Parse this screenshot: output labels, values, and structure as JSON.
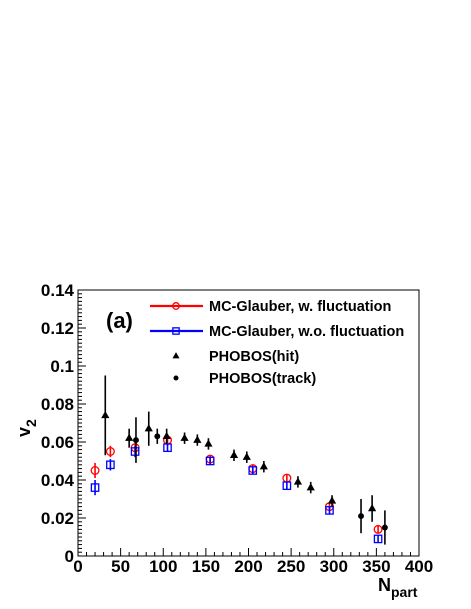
{
  "chart_data": {
    "type": "scatter",
    "panel_label": "(a)",
    "xlabel": {
      "main": "N",
      "sub": "part"
    },
    "ylabel": {
      "main": "v",
      "sub": "2"
    },
    "xlim": [
      0,
      400
    ],
    "ylim": [
      0,
      0.14
    ],
    "x_ticks": [
      0,
      50,
      100,
      150,
      200,
      250,
      300,
      350,
      400
    ],
    "x_tick_labels": [
      "0",
      "50",
      "100",
      "150",
      "200",
      "250",
      "300",
      "350",
      "400"
    ],
    "y_ticks": [
      0,
      0.02,
      0.04,
      0.06,
      0.08,
      0.1,
      0.12,
      0.14
    ],
    "y_tick_labels": [
      "0",
      "0.02",
      "0.04",
      "0.06",
      "0.08",
      "0.1",
      "0.12",
      "0.14"
    ],
    "grid": false,
    "legend_position": "top-right",
    "series": [
      {
        "name": "MC-Glauber, w. fluctuation",
        "marker": "open-circle",
        "color": "#ff0000",
        "points": [
          {
            "x": 20,
            "y": 0.045,
            "err": 0.004
          },
          {
            "x": 38,
            "y": 0.055,
            "err": 0.003
          },
          {
            "x": 67,
            "y": 0.057,
            "err": 0.003
          },
          {
            "x": 105,
            "y": 0.061,
            "err": 0.003
          },
          {
            "x": 155,
            "y": 0.051,
            "err": 0.002
          },
          {
            "x": 205,
            "y": 0.046,
            "err": 0.002
          },
          {
            "x": 245,
            "y": 0.041,
            "err": 0.002
          },
          {
            "x": 295,
            "y": 0.026,
            "err": 0.002
          },
          {
            "x": 352,
            "y": 0.014,
            "err": 0.002
          }
        ]
      },
      {
        "name": "MC-Glauber, w.o. fluctuation",
        "marker": "open-square",
        "color": "#0000ff",
        "points": [
          {
            "x": 20,
            "y": 0.036,
            "err": 0.004
          },
          {
            "x": 38,
            "y": 0.048,
            "err": 0.003
          },
          {
            "x": 67,
            "y": 0.055,
            "err": 0.003
          },
          {
            "x": 105,
            "y": 0.057,
            "err": 0.002
          },
          {
            "x": 155,
            "y": 0.05,
            "err": 0.002
          },
          {
            "x": 205,
            "y": 0.045,
            "err": 0.002
          },
          {
            "x": 245,
            "y": 0.037,
            "err": 0.002
          },
          {
            "x": 295,
            "y": 0.024,
            "err": 0.002
          },
          {
            "x": 352,
            "y": 0.009,
            "err": 0.002
          }
        ]
      },
      {
        "name": "PHOBOS(hit)",
        "marker": "filled-triangle",
        "color": "#000000",
        "points": [
          {
            "x": 32,
            "y": 0.074,
            "err": 0.021
          },
          {
            "x": 60,
            "y": 0.062,
            "err": 0.005
          },
          {
            "x": 83,
            "y": 0.067,
            "err": 0.009
          },
          {
            "x": 104,
            "y": 0.063,
            "err": 0.004
          },
          {
            "x": 125,
            "y": 0.062,
            "err": 0.003
          },
          {
            "x": 140,
            "y": 0.061,
            "err": 0.003
          },
          {
            "x": 153,
            "y": 0.059,
            "err": 0.003
          },
          {
            "x": 183,
            "y": 0.053,
            "err": 0.003
          },
          {
            "x": 198,
            "y": 0.052,
            "err": 0.003
          },
          {
            "x": 218,
            "y": 0.047,
            "err": 0.003
          },
          {
            "x": 258,
            "y": 0.039,
            "err": 0.003
          },
          {
            "x": 273,
            "y": 0.036,
            "err": 0.003
          },
          {
            "x": 298,
            "y": 0.029,
            "err": 0.003
          },
          {
            "x": 345,
            "y": 0.025,
            "err": 0.007
          }
        ]
      },
      {
        "name": "PHOBOS(track)",
        "marker": "filled-circle",
        "color": "#000000",
        "points": [
          {
            "x": 68,
            "y": 0.061,
            "err": 0.012
          },
          {
            "x": 93,
            "y": 0.063,
            "err": 0.004
          },
          {
            "x": 332,
            "y": 0.021,
            "err": 0.009
          },
          {
            "x": 360,
            "y": 0.015,
            "err": 0.009
          }
        ]
      }
    ]
  }
}
